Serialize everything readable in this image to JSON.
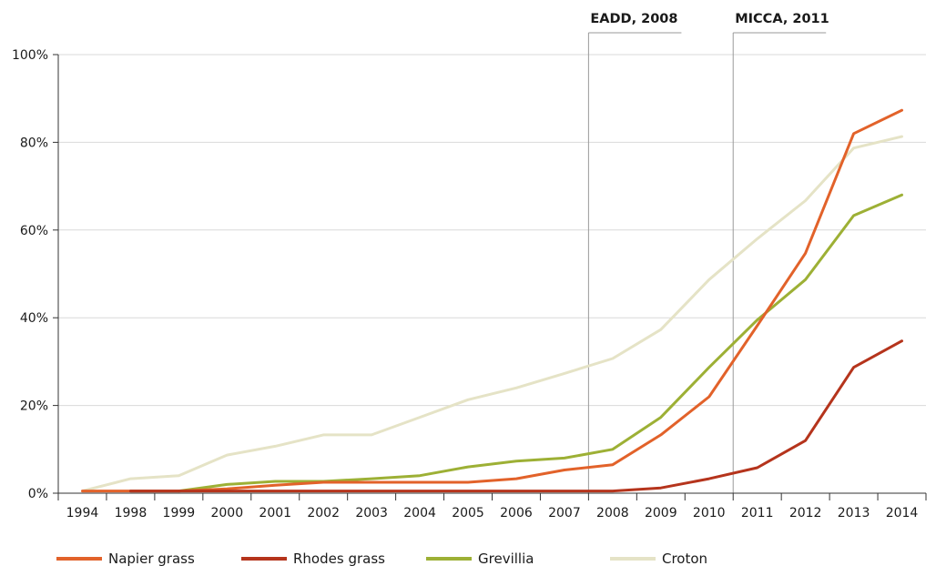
{
  "chart_data": {
    "type": "line",
    "categories": [
      "1994",
      "1998",
      "1999",
      "2000",
      "2001",
      "2002",
      "2003",
      "2004",
      "2005",
      "2006",
      "2007",
      "2008",
      "2009",
      "2010",
      "2011",
      "2012",
      "2013",
      "2014"
    ],
    "y_ticks": [
      "0%",
      "20%",
      "40%",
      "60%",
      "80%",
      "100%"
    ],
    "ylim": [
      0,
      100
    ],
    "grid": true,
    "legend_position": "bottom",
    "series": [
      {
        "name": "Napier grass",
        "color": "#e2622a",
        "values": [
          0.5,
          0.5,
          0.5,
          1,
          1.8,
          2.5,
          2.5,
          2.5,
          2.5,
          3.3,
          5.3,
          6.5,
          13.3,
          22,
          38.2,
          54.7,
          82,
          87.3
        ]
      },
      {
        "name": "Rhodes grass",
        "color": "#b5341c",
        "values": [
          null,
          0.5,
          0.5,
          0.5,
          0.5,
          0.5,
          0.5,
          0.5,
          0.5,
          0.5,
          0.5,
          0.5,
          1.2,
          3.3,
          5.8,
          12,
          28.7,
          34.7
        ]
      },
      {
        "name": "Grevillia",
        "color": "#9db035",
        "values": [
          null,
          null,
          0.5,
          2,
          2.7,
          2.7,
          3.3,
          4,
          6,
          7.3,
          8,
          10,
          17.3,
          28.7,
          39.5,
          48.7,
          63.3,
          68
        ]
      },
      {
        "name": "Croton",
        "color": "#e5e3c6",
        "values": [
          0.5,
          3.3,
          4,
          8.7,
          10.7,
          13.3,
          13.3,
          17.3,
          21.3,
          24,
          27.3,
          30.7,
          37.3,
          48.7,
          58,
          66.7,
          78.7,
          81.3
        ]
      }
    ],
    "annotations": [
      {
        "label": "EADD, 2008",
        "between": [
          "2007",
          "2008"
        ]
      },
      {
        "label": "MICCA, 2011",
        "between": [
          "2010",
          "2011"
        ]
      }
    ]
  }
}
